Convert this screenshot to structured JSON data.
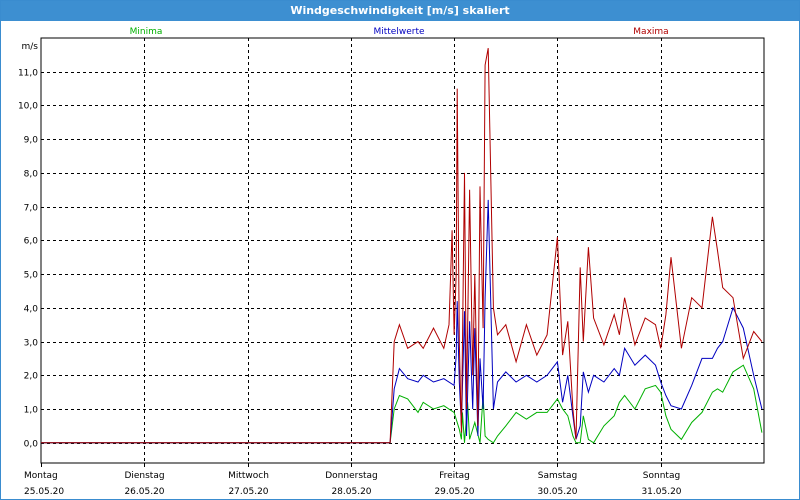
{
  "window": {
    "title": "Windgeschwindigkeit [m/s] skaliert"
  },
  "chart_data": {
    "type": "line",
    "title": "Windgeschwindigkeit [m/s] skaliert",
    "ylabel": "m/s",
    "ylim": [
      -0.6,
      12.0
    ],
    "xlim": [
      0,
      7
    ],
    "y_ticks": [
      "0,0",
      "1,0",
      "2,0",
      "3,0",
      "4,0",
      "5,0",
      "6,0",
      "7,0",
      "8,0",
      "9,0",
      "10,0",
      "11,0"
    ],
    "x_tick_labels": [
      {
        "day": "Montag",
        "date": "25.05.20"
      },
      {
        "day": "Dienstag",
        "date": "26.05.20"
      },
      {
        "day": "Mittwoch",
        "date": "27.05.20"
      },
      {
        "day": "Donnerstag",
        "date": "28.05.20"
      },
      {
        "day": "Freitag",
        "date": "29.05.20"
      },
      {
        "day": "Samstag",
        "date": "30.05.20"
      },
      {
        "day": "Sonntag",
        "date": "31.05.20"
      }
    ],
    "grid": true,
    "legend_position": "top",
    "series": [
      {
        "name": "Minima",
        "color": "#00b000",
        "x": [
          0,
          3.0,
          3.38,
          3.42,
          3.47,
          3.55,
          3.65,
          3.7,
          3.8,
          3.9,
          4.0,
          4.05,
          4.07,
          4.08,
          4.1,
          4.13,
          4.15,
          4.2,
          4.25,
          4.28,
          4.3,
          4.33,
          4.38,
          4.42,
          4.5,
          4.6,
          4.7,
          4.8,
          4.9,
          5.0,
          5.05,
          5.1,
          5.15,
          5.18,
          5.22,
          5.25,
          5.3,
          5.35,
          5.45,
          5.55,
          5.6,
          5.65,
          5.75,
          5.85,
          5.95,
          6.0,
          6.05,
          6.1,
          6.2,
          6.3,
          6.4,
          6.5,
          6.55,
          6.6,
          6.7,
          6.8,
          6.9,
          6.98
        ],
        "values": [
          0,
          0,
          0,
          1.0,
          1.4,
          1.3,
          0.9,
          1.2,
          1.0,
          1.1,
          0.9,
          0.4,
          0.1,
          0.9,
          0.0,
          1.2,
          0.1,
          0.6,
          0.0,
          1.4,
          0.2,
          0.1,
          0.0,
          0.2,
          0.5,
          0.9,
          0.7,
          0.9,
          0.9,
          1.3,
          1.0,
          0.8,
          0.2,
          0.0,
          0.0,
          0.8,
          0.1,
          0.0,
          0.5,
          0.8,
          1.2,
          1.4,
          1.0,
          1.6,
          1.7,
          1.5,
          0.8,
          0.4,
          0.1,
          0.6,
          0.9,
          1.5,
          1.6,
          1.5,
          2.1,
          2.3,
          1.6,
          0.3
        ]
      },
      {
        "name": "Mittelwerte",
        "color": "#0000c0",
        "x": [
          0,
          3.0,
          3.38,
          3.42,
          3.47,
          3.55,
          3.65,
          3.7,
          3.8,
          3.9,
          4.0,
          4.02,
          4.03,
          4.05,
          4.07,
          4.1,
          4.12,
          4.15,
          4.18,
          4.2,
          4.23,
          4.25,
          4.28,
          4.3,
          4.33,
          4.38,
          4.42,
          4.5,
          4.6,
          4.7,
          4.8,
          4.9,
          5.0,
          5.05,
          5.1,
          5.15,
          5.18,
          5.22,
          5.25,
          5.3,
          5.35,
          5.45,
          5.55,
          5.6,
          5.65,
          5.75,
          5.85,
          5.95,
          6.0,
          6.05,
          6.1,
          6.2,
          6.3,
          6.4,
          6.5,
          6.55,
          6.6,
          6.7,
          6.8,
          6.9,
          6.98
        ],
        "values": [
          0,
          0,
          0,
          1.6,
          2.2,
          1.9,
          1.8,
          2.0,
          1.8,
          1.9,
          1.7,
          2.6,
          4.2,
          1.8,
          0.5,
          3.9,
          0.2,
          3.6,
          1.0,
          3.4,
          0.2,
          2.5,
          1.0,
          4.3,
          7.2,
          1.0,
          1.8,
          2.1,
          1.8,
          2.0,
          1.8,
          2.0,
          2.4,
          1.2,
          2.0,
          0.8,
          0.1,
          0.5,
          2.1,
          1.5,
          2.0,
          1.8,
          2.2,
          2.0,
          2.8,
          2.3,
          2.6,
          2.3,
          1.8,
          1.4,
          1.1,
          1.0,
          1.7,
          2.5,
          2.5,
          2.8,
          3.0,
          4.0,
          3.4,
          2.0,
          1.0
        ]
      },
      {
        "name": "Maxima",
        "color": "#b00000",
        "x": [
          0,
          3.0,
          3.38,
          3.42,
          3.47,
          3.55,
          3.65,
          3.7,
          3.8,
          3.9,
          3.95,
          3.98,
          4.0,
          4.02,
          4.03,
          4.05,
          4.07,
          4.1,
          4.12,
          4.15,
          4.18,
          4.2,
          4.23,
          4.25,
          4.28,
          4.3,
          4.33,
          4.38,
          4.42,
          4.5,
          4.6,
          4.7,
          4.8,
          4.9,
          5.0,
          5.05,
          5.1,
          5.15,
          5.18,
          5.22,
          5.25,
          5.3,
          5.35,
          5.45,
          5.55,
          5.6,
          5.65,
          5.75,
          5.85,
          5.95,
          6.0,
          6.05,
          6.1,
          6.2,
          6.3,
          6.4,
          6.5,
          6.55,
          6.6,
          6.7,
          6.8,
          6.9,
          6.98
        ],
        "values": [
          0,
          0,
          0,
          3.0,
          3.5,
          2.8,
          3.0,
          2.8,
          3.4,
          2.8,
          3.5,
          6.3,
          3.2,
          5.0,
          10.5,
          3.0,
          0.3,
          8.0,
          1.0,
          7.5,
          2.0,
          5.0,
          0.5,
          7.6,
          3.4,
          11.2,
          11.7,
          4.0,
          3.2,
          3.5,
          2.4,
          3.5,
          2.6,
          3.2,
          6.1,
          2.6,
          3.6,
          1.0,
          0.1,
          5.2,
          3.0,
          5.8,
          3.7,
          2.9,
          3.8,
          3.2,
          4.3,
          2.9,
          3.7,
          3.5,
          2.8,
          3.8,
          5.5,
          2.8,
          4.3,
          4.0,
          6.7,
          5.7,
          4.6,
          4.3,
          2.5,
          3.3,
          3.0
        ]
      }
    ]
  }
}
